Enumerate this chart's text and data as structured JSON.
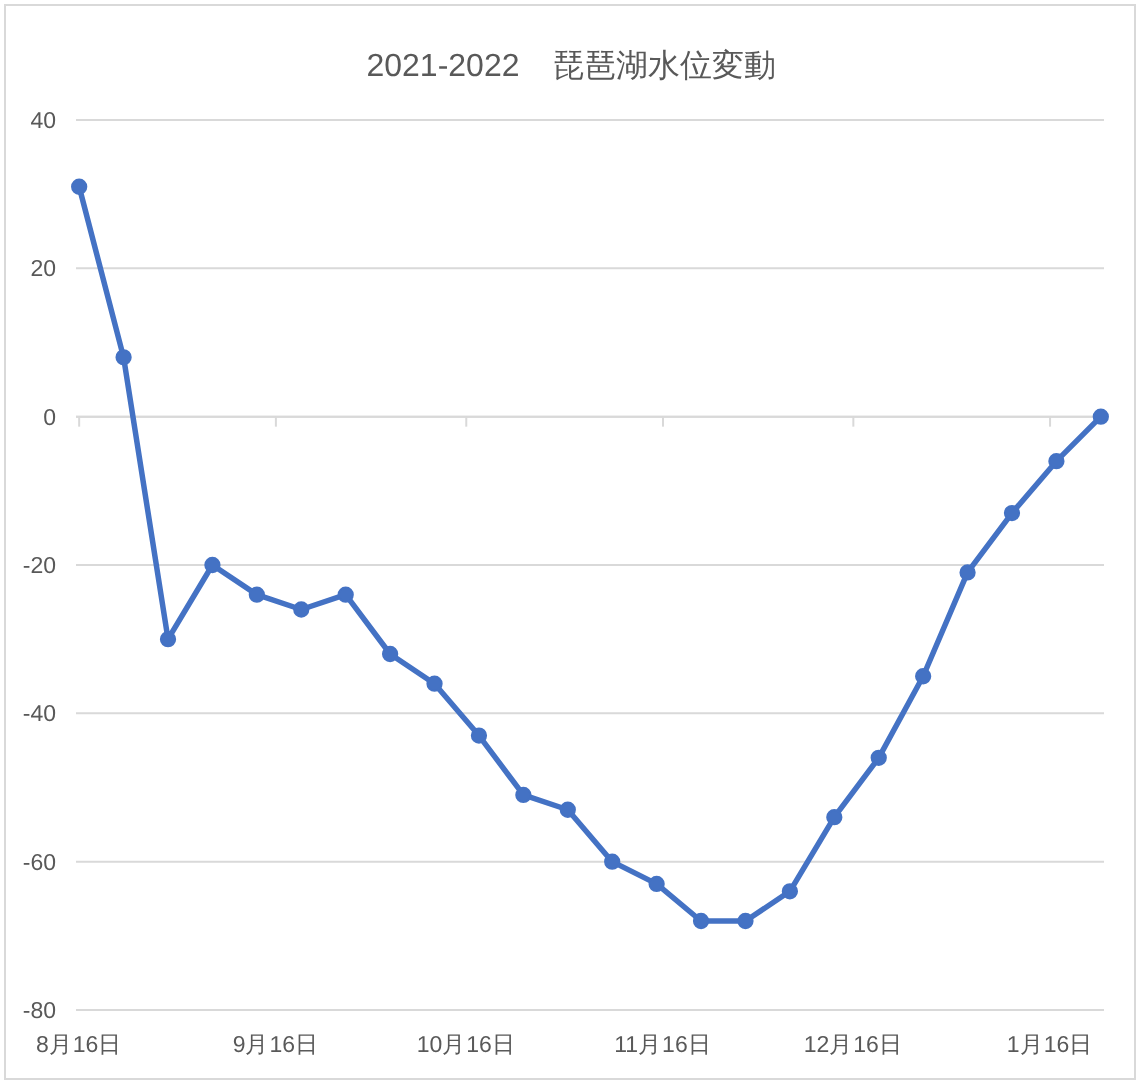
{
  "chart_data": {
    "type": "line",
    "title": "2021-2022　琵琶湖水位変動",
    "x": [
      "2021-08-16",
      "2021-08-23",
      "2021-08-30",
      "2021-09-06",
      "2021-09-13",
      "2021-09-20",
      "2021-09-27",
      "2021-10-04",
      "2021-10-11",
      "2021-10-18",
      "2021-10-25",
      "2021-11-01",
      "2021-11-08",
      "2021-11-15",
      "2021-11-22",
      "2021-11-29",
      "2021-12-06",
      "2021-12-13",
      "2021-12-20",
      "2021-12-27",
      "2022-01-03",
      "2022-01-10",
      "2022-01-17",
      "2022-01-24"
    ],
    "series": [
      {
        "color": "#4472c4",
        "values": [
          31,
          8,
          -30,
          -20,
          -24,
          -26,
          -24,
          -32,
          -36,
          -43,
          -51,
          -53,
          -60,
          -63,
          -68,
          -68,
          -64,
          -54,
          -46,
          -35,
          -21,
          -13,
          -6,
          0
        ]
      }
    ],
    "xlim": [
      "2021-08-15T12:00",
      "2022-01-24T12:00"
    ],
    "xticks": [
      {
        "value": "2021-08-16",
        "label": "8月16日"
      },
      {
        "value": "2021-09-16",
        "label": "9月16日"
      },
      {
        "value": "2021-10-16",
        "label": "10月16日"
      },
      {
        "value": "2021-11-16",
        "label": "11月16日"
      },
      {
        "value": "2021-12-16",
        "label": "12月16日"
      },
      {
        "value": "2022-01-16",
        "label": "1月16日"
      }
    ],
    "ylim": [
      -80,
      40
    ],
    "yticks": [
      -80,
      -60,
      -40,
      -20,
      0,
      20,
      40
    ],
    "grid": "y",
    "marker": "circle",
    "line_style": "solid"
  }
}
